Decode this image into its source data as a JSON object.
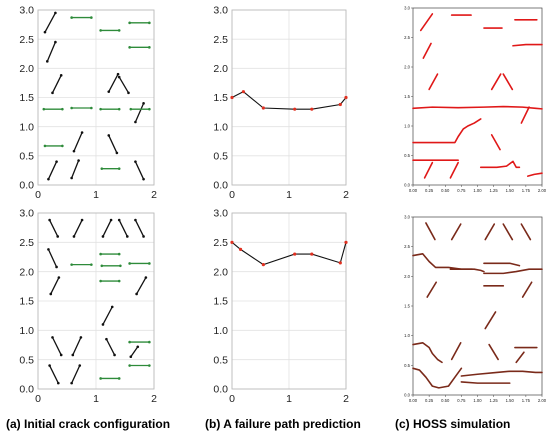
{
  "captions": {
    "a": "(a) Initial crack configuration",
    "b": "(b) A failure path prediction",
    "c": "(c) HOSS simulation"
  },
  "colors": {
    "crack": "#111111",
    "horizontal_crack": "#2e8b3a",
    "prediction_line": "#111111",
    "prediction_marker": "#e03020",
    "hoss_top": "#e01818",
    "hoss_bottom": "#7a2a1a",
    "grid": "#e2e2e2"
  },
  "chart_data": [
    {
      "type": "line",
      "panel": "a-top",
      "xlim": [
        0,
        2
      ],
      "ylim": [
        0,
        3
      ],
      "xticks": [
        0,
        1,
        2
      ],
      "yticks": [
        0.0,
        0.5,
        1.0,
        1.5,
        2.0,
        2.5,
        3.0
      ],
      "grid": true,
      "segments": [
        {
          "x": [
            0.12,
            0.3
          ],
          "y": [
            2.62,
            2.95
          ]
        },
        {
          "x": [
            0.16,
            0.3
          ],
          "y": [
            2.12,
            2.45
          ]
        },
        {
          "x": [
            0.25,
            0.4
          ],
          "y": [
            1.58,
            1.88
          ]
        },
        {
          "x": [
            0.1,
            0.42
          ],
          "y": [
            1.3,
            1.3
          ],
          "horizontal": true
        },
        {
          "x": [
            0.58,
            0.92
          ],
          "y": [
            2.87,
            2.87
          ],
          "horizontal": true
        },
        {
          "x": [
            0.58,
            0.92
          ],
          "y": [
            1.32,
            1.32
          ],
          "horizontal": true
        },
        {
          "x": [
            0.62,
            0.76
          ],
          "y": [
            0.58,
            0.9
          ]
        },
        {
          "x": [
            0.58,
            0.7
          ],
          "y": [
            0.12,
            0.42
          ]
        },
        {
          "x": [
            0.12,
            0.42
          ],
          "y": [
            0.67,
            0.67
          ],
          "horizontal": true
        },
        {
          "x": [
            0.18,
            0.32
          ],
          "y": [
            0.1,
            0.4
          ]
        },
        {
          "x": [
            1.08,
            1.4
          ],
          "y": [
            2.65,
            2.65
          ],
          "horizontal": true
        },
        {
          "x": [
            1.08,
            1.4
          ],
          "y": [
            1.3,
            1.3
          ],
          "horizontal": true
        },
        {
          "x": [
            1.22,
            1.38
          ],
          "y": [
            1.6,
            1.9
          ]
        },
        {
          "x": [
            1.4,
            1.56
          ],
          "y": [
            1.85,
            1.58
          ]
        },
        {
          "x": [
            1.22,
            1.36
          ],
          "y": [
            0.85,
            0.55
          ]
        },
        {
          "x": [
            1.1,
            1.4
          ],
          "y": [
            0.28,
            0.28
          ],
          "horizontal": true
        },
        {
          "x": [
            1.58,
            1.92
          ],
          "y": [
            2.78,
            2.78
          ],
          "horizontal": true
        },
        {
          "x": [
            1.58,
            1.92
          ],
          "y": [
            2.36,
            2.36
          ],
          "horizontal": true
        },
        {
          "x": [
            1.68,
            1.82
          ],
          "y": [
            1.08,
            1.4
          ]
        },
        {
          "x": [
            1.6,
            1.92
          ],
          "y": [
            1.3,
            1.3
          ],
          "horizontal": true
        },
        {
          "x": [
            1.68,
            1.82
          ],
          "y": [
            0.4,
            0.1
          ]
        }
      ]
    },
    {
      "type": "line",
      "panel": "b-top",
      "xlim": [
        0,
        2
      ],
      "ylim": [
        0,
        3
      ],
      "xticks": [
        0,
        1,
        2
      ],
      "yticks": [
        0.0,
        0.5,
        1.0,
        1.5,
        2.0,
        2.5,
        3.0
      ],
      "grid": true,
      "x": [
        0.0,
        0.2,
        0.55,
        1.1,
        1.4,
        1.9,
        2.0
      ],
      "y": [
        1.5,
        1.6,
        1.32,
        1.3,
        1.3,
        1.38,
        1.5
      ]
    },
    {
      "type": "line",
      "panel": "c-top",
      "xlim": [
        0,
        2
      ],
      "ylim": [
        0,
        3
      ],
      "xticks": [
        "0.00",
        "0.25",
        "0.50",
        "0.75",
        "1.00",
        "1.25",
        "1.50",
        "1.75",
        "2.00"
      ],
      "yticks": [
        "0.0",
        "0.5",
        "1.0",
        "1.5",
        "2.0",
        "2.5",
        "3.0"
      ],
      "grid": false,
      "paths": [
        {
          "x": [
            0.0,
            0.3,
            0.7,
            1.1,
            1.4,
            1.7,
            1.9,
            2.0
          ],
          "y": [
            1.3,
            1.32,
            1.31,
            1.32,
            1.33,
            1.32,
            1.3,
            1.29
          ]
        },
        {
          "x": [
            0.0,
            0.35,
            0.65,
            0.7,
            0.78,
            0.85,
            0.95,
            1.05
          ],
          "y": [
            0.72,
            0.72,
            0.72,
            0.82,
            0.95,
            1.0,
            1.05,
            1.12
          ]
        },
        {
          "x": [
            0.0,
            0.7
          ],
          "y": [
            0.42,
            0.42
          ]
        },
        {
          "x": [
            1.05,
            1.3,
            1.45,
            1.55,
            1.6,
            1.65
          ],
          "y": [
            0.3,
            0.3,
            0.32,
            0.4,
            0.3,
            0.3
          ]
        },
        {
          "x": [
            1.78,
            1.88,
            2.0
          ],
          "y": [
            0.15,
            0.18,
            0.2
          ]
        },
        {
          "x": [
            0.12,
            0.3
          ],
          "y": [
            2.62,
            2.9
          ]
        },
        {
          "x": [
            0.16,
            0.28
          ],
          "y": [
            2.15,
            2.4
          ]
        },
        {
          "x": [
            0.6,
            0.9
          ],
          "y": [
            2.88,
            2.88
          ]
        },
        {
          "x": [
            1.1,
            1.38
          ],
          "y": [
            2.66,
            2.66
          ]
        },
        {
          "x": [
            1.55,
            1.75,
            1.95,
            2.0
          ],
          "y": [
            2.36,
            2.38,
            2.38,
            2.38
          ]
        },
        {
          "x": [
            1.58,
            1.92
          ],
          "y": [
            2.8,
            2.8
          ]
        },
        {
          "x": [
            0.25,
            0.38
          ],
          "y": [
            1.62,
            1.88
          ]
        },
        {
          "x": [
            1.22,
            1.36
          ],
          "y": [
            1.62,
            1.88
          ]
        },
        {
          "x": [
            1.4,
            1.54
          ],
          "y": [
            1.88,
            1.62
          ]
        },
        {
          "x": [
            1.68,
            1.8
          ],
          "y": [
            1.05,
            1.32
          ]
        },
        {
          "x": [
            0.18,
            0.3
          ],
          "y": [
            0.12,
            0.38
          ]
        },
        {
          "x": [
            0.58,
            0.7
          ],
          "y": [
            0.12,
            0.38
          ]
        },
        {
          "x": [
            1.22,
            1.35
          ],
          "y": [
            0.85,
            0.6
          ]
        }
      ]
    },
    {
      "type": "line",
      "panel": "a-bottom",
      "xlim": [
        0,
        2
      ],
      "ylim": [
        0,
        3
      ],
      "xticks": [
        0,
        1,
        2
      ],
      "yticks": [
        0.0,
        0.5,
        1.0,
        1.5,
        2.0,
        2.5,
        3.0
      ],
      "grid": true,
      "segments": [
        {
          "x": [
            0.2,
            0.34
          ],
          "y": [
            2.88,
            2.6
          ]
        },
        {
          "x": [
            0.18,
            0.32
          ],
          "y": [
            2.38,
            2.08
          ]
        },
        {
          "x": [
            0.22,
            0.36
          ],
          "y": [
            1.62,
            1.9
          ]
        },
        {
          "x": [
            0.25,
            0.4
          ],
          "y": [
            0.88,
            0.58
          ]
        },
        {
          "x": [
            0.2,
            0.35
          ],
          "y": [
            0.4,
            0.1
          ]
        },
        {
          "x": [
            0.62,
            0.76
          ],
          "y": [
            2.6,
            2.88
          ]
        },
        {
          "x": [
            0.58,
            0.92
          ],
          "y": [
            2.12,
            2.12
          ],
          "horizontal": true
        },
        {
          "x": [
            0.6,
            0.74
          ],
          "y": [
            0.58,
            0.88
          ]
        },
        {
          "x": [
            0.58,
            0.72
          ],
          "y": [
            0.1,
            0.4
          ]
        },
        {
          "x": [
            1.12,
            1.26
          ],
          "y": [
            2.6,
            2.88
          ]
        },
        {
          "x": [
            1.4,
            1.54
          ],
          "y": [
            2.88,
            2.6
          ]
        },
        {
          "x": [
            1.08,
            1.4
          ],
          "y": [
            2.3,
            2.3
          ],
          "horizontal": true
        },
        {
          "x": [
            1.08,
            1.4
          ],
          "y": [
            1.84,
            1.84
          ],
          "horizontal": true
        },
        {
          "x": [
            1.1,
            1.42
          ],
          "y": [
            2.1,
            2.1
          ],
          "horizontal": true
        },
        {
          "x": [
            1.12,
            1.28
          ],
          "y": [
            1.1,
            1.4
          ]
        },
        {
          "x": [
            1.18,
            1.32
          ],
          "y": [
            0.85,
            0.58
          ]
        },
        {
          "x": [
            1.08,
            1.4
          ],
          "y": [
            0.18,
            0.18
          ],
          "horizontal": true
        },
        {
          "x": [
            1.68,
            1.82
          ],
          "y": [
            2.88,
            2.6
          ]
        },
        {
          "x": [
            1.58,
            1.92
          ],
          "y": [
            2.14,
            2.14
          ],
          "horizontal": true
        },
        {
          "x": [
            1.7,
            1.86
          ],
          "y": [
            1.62,
            1.9
          ]
        },
        {
          "x": [
            1.58,
            1.92
          ],
          "y": [
            0.8,
            0.8
          ],
          "horizontal": true
        },
        {
          "x": [
            1.6,
            1.72
          ],
          "y": [
            0.55,
            0.72
          ]
        },
        {
          "x": [
            1.58,
            1.92
          ],
          "y": [
            0.4,
            0.4
          ],
          "horizontal": true
        }
      ]
    },
    {
      "type": "line",
      "panel": "b-bottom",
      "xlim": [
        0,
        2
      ],
      "ylim": [
        0,
        3
      ],
      "xticks": [
        0,
        1,
        2
      ],
      "yticks": [
        0.0,
        0.5,
        1.0,
        1.5,
        2.0,
        2.5,
        3.0
      ],
      "grid": true,
      "x": [
        0.0,
        0.15,
        0.55,
        1.1,
        1.4,
        1.9,
        2.0
      ],
      "y": [
        2.5,
        2.38,
        2.12,
        2.3,
        2.3,
        2.15,
        2.5
      ]
    },
    {
      "type": "line",
      "panel": "c-bottom",
      "xlim": [
        0,
        2
      ],
      "ylim": [
        0,
        3
      ],
      "xticks": [
        "0.00",
        "0.25",
        "0.50",
        "0.75",
        "1.00",
        "1.25",
        "1.50",
        "1.75",
        "2.00"
      ],
      "yticks": [
        "0.0",
        "0.5",
        "1.0",
        "1.5",
        "2.0",
        "2.5",
        "3.0"
      ],
      "grid": false,
      "paths": [
        {
          "x": [
            0.0,
            0.15,
            0.25,
            0.35,
            0.55,
            0.75,
            0.95,
            1.05,
            1.1
          ],
          "y": [
            2.35,
            2.38,
            2.25,
            2.15,
            2.15,
            2.12,
            2.12,
            2.1,
            2.08
          ]
        },
        {
          "x": [
            1.1,
            1.3,
            1.5,
            1.65
          ],
          "y": [
            2.22,
            2.22,
            2.22,
            2.18
          ]
        },
        {
          "x": [
            1.1,
            1.4,
            1.6,
            1.8,
            2.0
          ],
          "y": [
            2.05,
            2.05,
            2.08,
            2.12,
            2.12
          ]
        },
        {
          "x": [
            0.0,
            0.15,
            0.25,
            0.3,
            0.38,
            0.45
          ],
          "y": [
            0.85,
            0.88,
            0.8,
            0.7,
            0.6,
            0.55
          ]
        },
        {
          "x": [
            0.0,
            0.1,
            0.2,
            0.3,
            0.4,
            0.55,
            0.65,
            0.75
          ],
          "y": [
            0.45,
            0.42,
            0.3,
            0.15,
            0.12,
            0.15,
            0.3,
            0.45
          ]
        },
        {
          "x": [
            0.75,
            1.0,
            1.3,
            1.5,
            1.7,
            1.9,
            2.0
          ],
          "y": [
            0.32,
            0.35,
            0.38,
            0.4,
            0.4,
            0.38,
            0.38
          ]
        },
        {
          "x": [
            0.75,
            1.0,
            1.3,
            1.5
          ],
          "y": [
            0.22,
            0.2,
            0.2,
            0.2
          ]
        },
        {
          "x": [
            0.2,
            0.34
          ],
          "y": [
            2.9,
            2.62
          ]
        },
        {
          "x": [
            0.6,
            0.74
          ],
          "y": [
            2.62,
            2.88
          ]
        },
        {
          "x": [
            1.12,
            1.26
          ],
          "y": [
            2.62,
            2.88
          ]
        },
        {
          "x": [
            1.4,
            1.54
          ],
          "y": [
            2.88,
            2.62
          ]
        },
        {
          "x": [
            1.68,
            1.82
          ],
          "y": [
            2.88,
            2.62
          ]
        },
        {
          "x": [
            0.58,
            0.92
          ],
          "y": [
            2.12,
            2.12
          ]
        },
        {
          "x": [
            1.1,
            1.4
          ],
          "y": [
            1.84,
            1.84
          ]
        },
        {
          "x": [
            0.22,
            0.36
          ],
          "y": [
            1.65,
            1.9
          ]
        },
        {
          "x": [
            1.7,
            1.84
          ],
          "y": [
            1.65,
            1.9
          ]
        },
        {
          "x": [
            1.12,
            1.28
          ],
          "y": [
            1.12,
            1.4
          ]
        },
        {
          "x": [
            0.6,
            0.74
          ],
          "y": [
            0.6,
            0.88
          ]
        },
        {
          "x": [
            1.18,
            1.32
          ],
          "y": [
            0.85,
            0.6
          ]
        },
        {
          "x": [
            1.58,
            1.92
          ],
          "y": [
            0.8,
            0.8
          ]
        },
        {
          "x": [
            1.6,
            1.72
          ],
          "y": [
            0.55,
            0.72
          ]
        }
      ]
    }
  ]
}
